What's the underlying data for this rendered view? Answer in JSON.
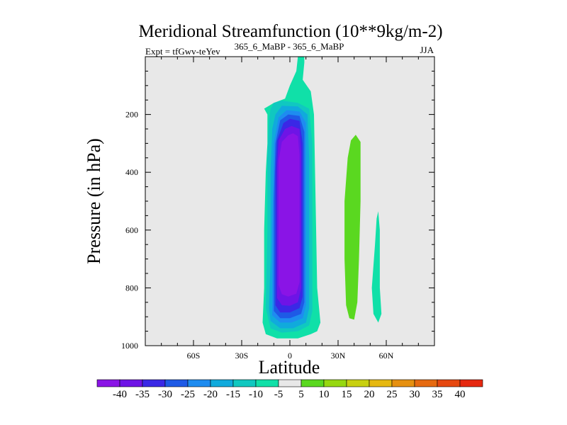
{
  "chart_data": {
    "type": "heatmap",
    "title": "Meridional Streamfunction (10**9kg/m-2)",
    "subtitle_left": "Expt = tfGwv-teYev",
    "subtitle_center": "365_6_MaBP - 365_6_MaBP",
    "subtitle_right": "JJA",
    "xlabel": "Latitude",
    "ylabel": "Pressure (in hPa)",
    "xlim": [
      -90,
      90
    ],
    "ylim": [
      1000,
      0
    ],
    "x_ticks": [
      -60,
      -30,
      0,
      30,
      60
    ],
    "x_tick_labels": [
      "60S",
      "30S",
      "0",
      "30N",
      "60N"
    ],
    "y_ticks": [
      200,
      400,
      600,
      800,
      1000
    ],
    "y_tick_labels": [
      "200",
      "400",
      "600",
      "800",
      "1000"
    ],
    "background_color": "#e8e8e8",
    "colorbar": {
      "labels": [
        "-40",
        "-35",
        "-30",
        "-25",
        "-20",
        "-15",
        "-10",
        "-5",
        "5",
        "10",
        "15",
        "20",
        "25",
        "30",
        "35",
        "40"
      ],
      "colors": [
        "#8a14e6",
        "#6e14e6",
        "#3a28e6",
        "#1e5ae6",
        "#1e8cf0",
        "#10aadc",
        "#10c8c0",
        "#10e0a8",
        "#e8e8e8",
        "#5ad820",
        "#96d810",
        "#c8d010",
        "#e6b810",
        "#e69010",
        "#e66a10",
        "#e64810",
        "#e62810"
      ]
    },
    "contours": [
      {
        "level_color": "#10e0a8",
        "label": "-5",
        "points": [
          [
            5,
            0
          ],
          [
            9,
            0
          ],
          [
            9,
            20
          ],
          [
            8,
            80
          ],
          [
            13,
            120
          ],
          [
            15,
            200
          ],
          [
            16,
            500
          ],
          [
            17,
            800
          ],
          [
            19,
            920
          ],
          [
            17,
            950
          ],
          [
            13,
            960
          ],
          [
            5,
            975
          ],
          [
            -8,
            975
          ],
          [
            -15,
            960
          ],
          [
            -17,
            920
          ],
          [
            -16,
            800
          ],
          [
            -16,
            600
          ],
          [
            -15,
            400
          ],
          [
            -14,
            300
          ],
          [
            -14,
            260
          ],
          [
            -14,
            200
          ],
          [
            -16,
            180
          ],
          [
            -10,
            160
          ],
          [
            -3,
            145
          ],
          [
            0,
            100
          ],
          [
            4,
            50
          ]
        ]
      },
      {
        "level_color": "#10c8c0",
        "label": "-10",
        "points": [
          [
            -10,
            160
          ],
          [
            -5,
            152
          ],
          [
            5,
            160
          ],
          [
            12,
            180
          ],
          [
            14,
            300
          ],
          [
            14,
            600
          ],
          [
            14,
            880
          ],
          [
            12,
            930
          ],
          [
            5,
            950
          ],
          [
            -5,
            955
          ],
          [
            -12,
            940
          ],
          [
            -15,
            870
          ],
          [
            -14,
            600
          ],
          [
            -14,
            350
          ],
          [
            -13,
            220
          ],
          [
            -12,
            180
          ]
        ]
      },
      {
        "level_color": "#10aadc",
        "label": "-15",
        "points": [
          [
            -5,
            170
          ],
          [
            5,
            172
          ],
          [
            11,
            200
          ],
          [
            12,
            350
          ],
          [
            12,
            870
          ],
          [
            10,
            920
          ],
          [
            2,
            940
          ],
          [
            -6,
            940
          ],
          [
            -12,
            915
          ],
          [
            -13,
            870
          ],
          [
            -12,
            700
          ],
          [
            -12,
            400
          ],
          [
            -11,
            250
          ],
          [
            -9,
            200
          ]
        ]
      },
      {
        "level_color": "#1e8cf0",
        "label": "-20",
        "points": [
          [
            -2,
            185
          ],
          [
            6,
            190
          ],
          [
            10,
            230
          ],
          [
            10,
            860
          ],
          [
            8,
            905
          ],
          [
            1,
            920
          ],
          [
            -6,
            920
          ],
          [
            -11,
            895
          ],
          [
            -11,
            600
          ],
          [
            -10,
            300
          ],
          [
            -7,
            210
          ]
        ]
      },
      {
        "level_color": "#1e5ae6",
        "label": "-25",
        "points": [
          [
            -1,
            200
          ],
          [
            6,
            205
          ],
          [
            9,
            260
          ],
          [
            9,
            850
          ],
          [
            7,
            890
          ],
          [
            0,
            905
          ],
          [
            -6,
            905
          ],
          [
            -10,
            880
          ],
          [
            -10,
            500
          ],
          [
            -9,
            300
          ],
          [
            -6,
            220
          ]
        ]
      },
      {
        "level_color": "#3a28e6",
        "label": "-30",
        "points": [
          [
            0,
            215
          ],
          [
            6,
            222
          ],
          [
            8,
            300
          ],
          [
            8,
            830
          ],
          [
            6,
            870
          ],
          [
            0,
            885
          ],
          [
            -6,
            885
          ],
          [
            -9,
            860
          ],
          [
            -9,
            400
          ],
          [
            -8,
            290
          ],
          [
            -4,
            230
          ]
        ]
      },
      {
        "level_color": "#6e14e6",
        "label": "-35",
        "points": [
          [
            1,
            240
          ],
          [
            6,
            250
          ],
          [
            7,
            330
          ],
          [
            7,
            800
          ],
          [
            5,
            850
          ],
          [
            0,
            862
          ],
          [
            -5,
            860
          ],
          [
            -8,
            835
          ],
          [
            -8,
            380
          ],
          [
            -7,
            290
          ],
          [
            -3,
            250
          ]
        ]
      },
      {
        "level_color": "#8a14e6",
        "label": "-40",
        "points": [
          [
            2,
            265
          ],
          [
            5,
            275
          ],
          [
            6,
            340
          ],
          [
            6,
            780
          ],
          [
            4,
            820
          ],
          [
            -1,
            830
          ],
          [
            -5,
            822
          ],
          [
            -7,
            790
          ],
          [
            -7,
            360
          ],
          [
            -5,
            295
          ],
          [
            -1,
            272
          ]
        ]
      },
      {
        "level_color": "#5ad820",
        "label": "5",
        "points": [
          [
            41,
            270
          ],
          [
            44,
            295
          ],
          [
            44,
            500
          ],
          [
            43,
            700
          ],
          [
            42,
            850
          ],
          [
            40,
            910
          ],
          [
            37,
            905
          ],
          [
            35,
            860
          ],
          [
            34,
            700
          ],
          [
            34,
            500
          ],
          [
            36,
            350
          ],
          [
            38,
            290
          ]
        ]
      },
      {
        "level_color": "#10e0a8",
        "label": "-5",
        "points": [
          [
            55,
            535
          ],
          [
            56,
            600
          ],
          [
            56,
            800
          ],
          [
            57,
            890
          ],
          [
            55,
            920
          ],
          [
            52,
            890
          ],
          [
            51,
            800
          ],
          [
            53,
            650
          ],
          [
            54,
            560
          ]
        ]
      }
    ]
  }
}
